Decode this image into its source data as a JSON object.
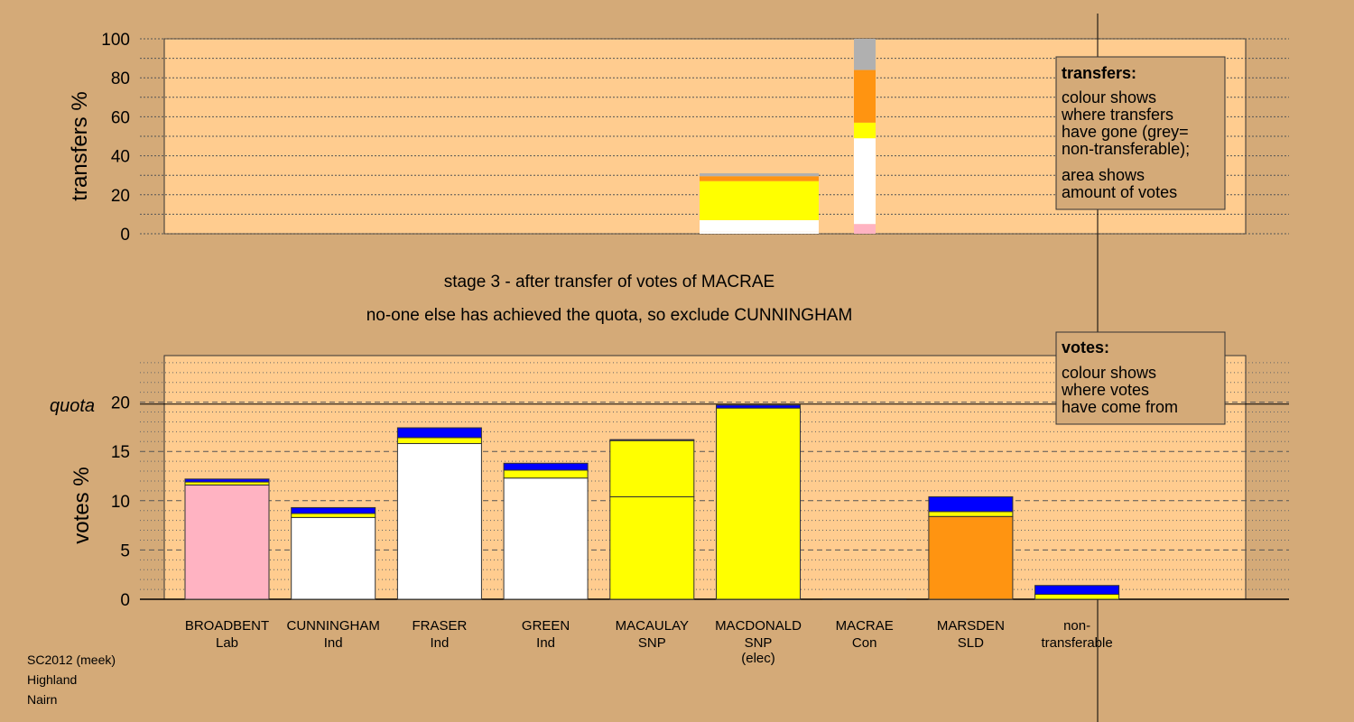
{
  "colors": {
    "background": "#d4aa78",
    "panel": "#ffcc8f",
    "Lab": "#ffb3c2",
    "Ind": "#ffffff",
    "SNP": "#ffff00",
    "Con": "#1a3fff",
    "SLD": "#ff9411",
    "nontransferable": "#b0b0b0",
    "incoming": "#0000ff"
  },
  "headings": {
    "line1": "stage 3 - after transfer of votes of MACRAE",
    "line2": "no-one else has achieved the quota, so exclude CUNNINGHAM"
  },
  "footer": {
    "line1": "SC2012 (meek)",
    "line2": "Highland",
    "line3": "Nairn"
  },
  "legends": {
    "transfers": {
      "title": "transfers:",
      "lines_a": [
        "colour shows",
        "where transfers",
        "have gone (grey=",
        "non-transferable);"
      ],
      "lines_b": [
        "area shows",
        "amount of votes"
      ]
    },
    "votes": {
      "title": "votes:",
      "lines": [
        "colour shows",
        "where votes",
        "have come from"
      ]
    }
  },
  "chart_data": [
    {
      "type": "bar",
      "name": "transfers",
      "ylabel": "transfers %",
      "ylim": [
        0,
        100
      ],
      "yticks": [
        0,
        20,
        40,
        60,
        80,
        100
      ],
      "grid": true,
      "bars": [
        {
          "segments": [
            {
              "key": "Ind",
              "from": 0,
              "to": 1
            },
            {
              "key": "Ind",
              "from": 1,
              "to": 7
            },
            {
              "key": "SNP",
              "from": 7,
              "to": 27
            },
            {
              "key": "SLD",
              "from": 27,
              "to": 29.5
            },
            {
              "key": "nontransferable",
              "from": 29.5,
              "to": 31
            }
          ]
        },
        {
          "segments": [
            {
              "key": "Lab",
              "from": 0,
              "to": 5
            },
            {
              "key": "Ind",
              "from": 5,
              "to": 49
            },
            {
              "key": "SNP",
              "from": 49,
              "to": 57
            },
            {
              "key": "SLD",
              "from": 57,
              "to": 84
            },
            {
              "key": "nontransferable",
              "from": 84,
              "to": 100
            }
          ]
        }
      ]
    },
    {
      "type": "bar",
      "name": "votes",
      "ylabel": "votes %",
      "ylim": [
        0,
        25
      ],
      "yticks": [
        0,
        5,
        10,
        15,
        20
      ],
      "quota": 19.8,
      "quota_label": "quota",
      "grid": true,
      "candidates": [
        {
          "name": "BROADBENT",
          "party": "Lab",
          "note": "",
          "segments": [
            {
              "key": "Lab",
              "v": 11.6
            },
            {
              "key": "SNP",
              "v": 0.3
            },
            {
              "key": "incoming",
              "v": 0.3
            }
          ]
        },
        {
          "name": "CUNNINGHAM",
          "party": "Ind",
          "note": "",
          "segments": [
            {
              "key": "Ind",
              "v": 8.3
            },
            {
              "key": "SNP",
              "v": 0.4
            },
            {
              "key": "incoming",
              "v": 0.6
            }
          ]
        },
        {
          "name": "FRASER",
          "party": "Ind",
          "note": "",
          "segments": [
            {
              "key": "Ind",
              "v": 15.8
            },
            {
              "key": "SNP",
              "v": 0.6
            },
            {
              "key": "incoming",
              "v": 1.0
            }
          ]
        },
        {
          "name": "GREEN",
          "party": "Ind",
          "note": "",
          "segments": [
            {
              "key": "Ind",
              "v": 12.3
            },
            {
              "key": "SNP",
              "v": 0.8
            },
            {
              "key": "incoming",
              "v": 0.7
            }
          ]
        },
        {
          "name": "MACAULAY",
          "party": "SNP",
          "note": "",
          "segments": [
            {
              "key": "SNP",
              "v": 10.4
            },
            {
              "key": "SNP",
              "v": 5.7
            },
            {
              "key": "incoming",
              "v": 0.1
            }
          ]
        },
        {
          "name": "MACDONALD",
          "party": "SNP",
          "note": "(elec)",
          "segments": [
            {
              "key": "SNP",
              "v": 19.4
            },
            {
              "key": "incoming",
              "v": 0.3
            }
          ]
        },
        {
          "name": "MACRAE",
          "party": "Con",
          "note": "",
          "segments": []
        },
        {
          "name": "MARSDEN",
          "party": "SLD",
          "note": "",
          "segments": [
            {
              "key": "SLD",
              "v": 8.4
            },
            {
              "key": "SNP",
              "v": 0.5
            },
            {
              "key": "incoming",
              "v": 1.5
            }
          ]
        },
        {
          "name": "non-",
          "party": "transferable",
          "note": "",
          "segments": [
            {
              "key": "SNP",
              "v": 0.5
            },
            {
              "key": "incoming",
              "v": 0.9
            }
          ]
        }
      ]
    }
  ]
}
